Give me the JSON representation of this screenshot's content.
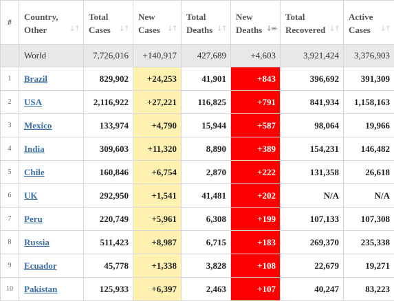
{
  "headers": {
    "rank": "#",
    "country": [
      "Country,",
      "Other"
    ],
    "total_cases": [
      "Total",
      "Cases"
    ],
    "new_cases": [
      "New",
      "Cases"
    ],
    "total_deaths": [
      "Total",
      "Deaths"
    ],
    "new_deaths": [
      "New",
      "Deaths"
    ],
    "total_recovered": [
      "Total",
      "Recovered"
    ],
    "active_cases": [
      "Active",
      "Cases"
    ]
  },
  "icons": {
    "sort": "sort-icon",
    "sort_active": "sort-descending-icon"
  },
  "colors": {
    "new_cases_highlight": "#fff1b0",
    "new_deaths_highlight": "#ff0000",
    "world_row_bg": "#e8e8e8",
    "country_link": "#3a6fa8"
  },
  "world": {
    "name": "World",
    "total_cases": "7,726,016",
    "new_cases": "+140,917",
    "total_deaths": "427,689",
    "new_deaths": "+4,603",
    "total_recovered": "3,921,424",
    "active_cases": "3,376,903"
  },
  "rows": [
    {
      "rank": "1",
      "country": "Brazil",
      "total_cases": "829,902",
      "new_cases": "+24,253",
      "total_deaths": "41,901",
      "new_deaths": "+843",
      "total_recovered": "396,692",
      "active_cases": "391,309"
    },
    {
      "rank": "2",
      "country": "USA",
      "total_cases": "2,116,922",
      "new_cases": "+27,221",
      "total_deaths": "116,825",
      "new_deaths": "+791",
      "total_recovered": "841,934",
      "active_cases": "1,158,163"
    },
    {
      "rank": "3",
      "country": "Mexico",
      "total_cases": "133,974",
      "new_cases": "+4,790",
      "total_deaths": "15,944",
      "new_deaths": "+587",
      "total_recovered": "98,064",
      "active_cases": "19,966"
    },
    {
      "rank": "4",
      "country": "India",
      "total_cases": "309,603",
      "new_cases": "+11,320",
      "total_deaths": "8,890",
      "new_deaths": "+389",
      "total_recovered": "154,231",
      "active_cases": "146,482"
    },
    {
      "rank": "5",
      "country": "Chile",
      "total_cases": "160,846",
      "new_cases": "+6,754",
      "total_deaths": "2,870",
      "new_deaths": "+222",
      "total_recovered": "131,358",
      "active_cases": "26,618"
    },
    {
      "rank": "6",
      "country": "UK",
      "total_cases": "292,950",
      "new_cases": "+1,541",
      "total_deaths": "41,481",
      "new_deaths": "+202",
      "total_recovered": "N/A",
      "active_cases": "N/A"
    },
    {
      "rank": "7",
      "country": "Peru",
      "total_cases": "220,749",
      "new_cases": "+5,961",
      "total_deaths": "6,308",
      "new_deaths": "+199",
      "total_recovered": "107,133",
      "active_cases": "107,308"
    },
    {
      "rank": "8",
      "country": "Russia",
      "total_cases": "511,423",
      "new_cases": "+8,987",
      "total_deaths": "6,715",
      "new_deaths": "+183",
      "total_recovered": "269,370",
      "active_cases": "235,338"
    },
    {
      "rank": "9",
      "country": "Ecuador",
      "total_cases": "45,778",
      "new_cases": "+1,338",
      "total_deaths": "3,828",
      "new_deaths": "+108",
      "total_recovered": "22,679",
      "active_cases": "19,271"
    },
    {
      "rank": "10",
      "country": "Pakistan",
      "total_cases": "125,933",
      "new_cases": "+6,397",
      "total_deaths": "2,463",
      "new_deaths": "+107",
      "total_recovered": "40,247",
      "active_cases": "83,223"
    }
  ]
}
